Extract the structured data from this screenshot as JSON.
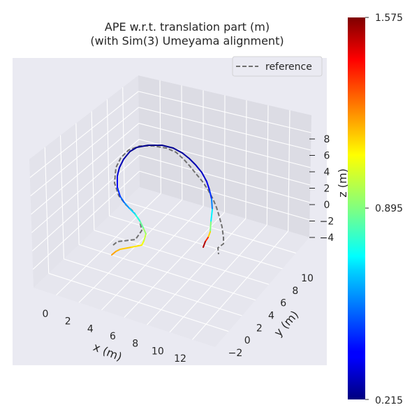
{
  "chart_data": {
    "type": "line",
    "title_lines": [
      "APE w.r.t. translation part (m)",
      "(with Sim(3) Umeyama alignment)"
    ],
    "xlabel": "x (m)",
    "ylabel": "y (m)",
    "zlabel": "z (m)",
    "xticks": [
      "0",
      "2",
      "4",
      "6",
      "8",
      "10",
      "12"
    ],
    "yticks": [
      "−2",
      "0",
      "2",
      "4",
      "6",
      "8",
      "10"
    ],
    "zticks": [
      "8",
      "6",
      "4",
      "2",
      "0",
      "−2",
      "−4"
    ],
    "legend": {
      "label": "reference",
      "placement": "top-right"
    },
    "colorbar": {
      "min": 0.215,
      "max": 1.575,
      "tick_labels": [
        "1.575",
        "0.895",
        "0.215"
      ],
      "colormap": "jet"
    },
    "series": [
      {
        "name": "reference",
        "style": "dashed",
        "color": "#707070",
        "points": [
          [
            162,
            351
          ],
          [
            168,
            346
          ],
          [
            194,
            343
          ],
          [
            203,
            330
          ],
          [
            200,
            316
          ],
          [
            191,
            303
          ],
          [
            180,
            293
          ],
          [
            170,
            280
          ],
          [
            164,
            262
          ],
          [
            166,
            240
          ],
          [
            173,
            226
          ],
          [
            184,
            215
          ],
          [
            200,
            209
          ],
          [
            220,
            209
          ],
          [
            238,
            212
          ],
          [
            252,
            218
          ],
          [
            263,
            228
          ],
          [
            272,
            238
          ],
          [
            280,
            248
          ],
          [
            290,
            260
          ],
          [
            298,
            272
          ],
          [
            305,
            285
          ],
          [
            310,
            297
          ],
          [
            314,
            310
          ],
          [
            318,
            325
          ],
          [
            320,
            340
          ],
          [
            320,
            349
          ],
          [
            312,
            355
          ],
          [
            313,
            364
          ]
        ]
      },
      {
        "name": "",
        "style": "solid",
        "colored_by_error": true,
        "points": [
          [
            160,
            365
          ],
          [
            166,
            360
          ],
          [
            172,
            357
          ],
          [
            188,
            354
          ],
          [
            203,
            351
          ],
          [
            206,
            345
          ],
          [
            209,
            335
          ],
          [
            205,
            326
          ],
          [
            200,
            316
          ],
          [
            193,
            306
          ],
          [
            185,
            298
          ],
          [
            178,
            290
          ],
          [
            172,
            281
          ],
          [
            168,
            268
          ],
          [
            168,
            252
          ],
          [
            171,
            240
          ],
          [
            177,
            228
          ],
          [
            186,
            217
          ],
          [
            196,
            211
          ],
          [
            212,
            208
          ],
          [
            232,
            208
          ],
          [
            248,
            212
          ],
          [
            261,
            219
          ],
          [
            271,
            227
          ],
          [
            280,
            236
          ],
          [
            289,
            247
          ],
          [
            296,
            260
          ],
          [
            300,
            272
          ],
          [
            303,
            285
          ],
          [
            304,
            300
          ],
          [
            302,
            318
          ],
          [
            301,
            332
          ],
          [
            298,
            340
          ],
          [
            294,
            346
          ],
          [
            291,
            354
          ]
        ],
        "error_values": [
          1.2,
          1.18,
          1.15,
          1.12,
          1.08,
          1.02,
          0.96,
          0.9,
          0.82,
          0.72,
          0.62,
          0.55,
          0.48,
          0.4,
          0.34,
          0.3,
          0.27,
          0.25,
          0.24,
          0.23,
          0.23,
          0.24,
          0.25,
          0.27,
          0.28,
          0.3,
          0.32,
          0.4,
          0.5,
          0.62,
          0.8,
          1.0,
          1.25,
          1.45,
          1.57
        ]
      }
    ]
  }
}
